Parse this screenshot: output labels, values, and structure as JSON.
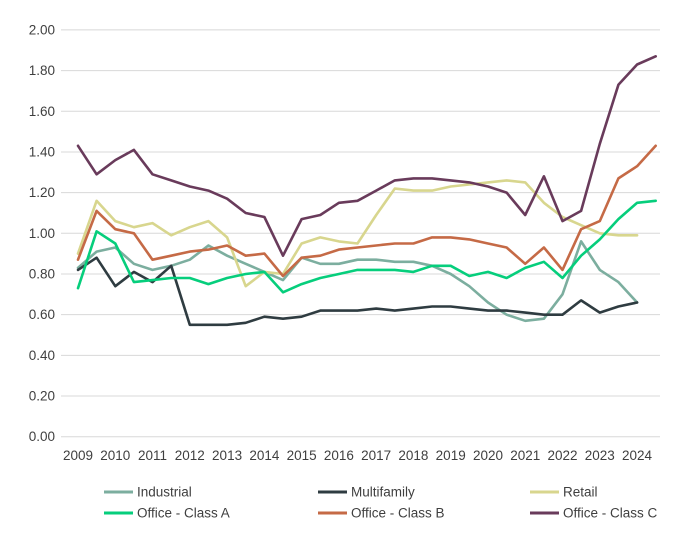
{
  "chart_data": {
    "type": "line",
    "title": "",
    "xlabel": "",
    "ylabel": "",
    "x_start": 2009,
    "x_step": 0.5,
    "x_tick_labels": [
      "2009",
      "2010",
      "2011",
      "2012",
      "2013",
      "2014",
      "2015",
      "2016",
      "2017",
      "2018",
      "2019",
      "2020",
      "2021",
      "2022",
      "2023",
      "2024"
    ],
    "y_tick_labels": [
      "2.00",
      "1.80",
      "1.60",
      "1.40",
      "1.20",
      "1.00",
      "0.80",
      "0.60",
      "0.40",
      "0.20",
      "0.00"
    ],
    "y_range": [
      0.0,
      2.0
    ],
    "grid": true,
    "legend_position": "bottom",
    "series": [
      {
        "name": "Industrial",
        "color": "#7CAE9F",
        "values": [
          0.83,
          0.91,
          0.93,
          0.85,
          0.82,
          0.84,
          0.87,
          0.94,
          0.89,
          0.85,
          0.81,
          0.77,
          0.88,
          0.85,
          0.85,
          0.87,
          0.87,
          0.86,
          0.86,
          0.84,
          0.8,
          0.74,
          0.66,
          0.6,
          0.57,
          0.58,
          0.7,
          0.96,
          0.82,
          0.76,
          0.66
        ]
      },
      {
        "name": "Multifamily",
        "color": "#2F3C41",
        "values": [
          0.82,
          0.88,
          0.74,
          0.81,
          0.76,
          0.84,
          0.55,
          0.55,
          0.55,
          0.56,
          0.59,
          0.58,
          0.59,
          0.62,
          0.62,
          0.62,
          0.63,
          0.62,
          0.63,
          0.64,
          0.64,
          0.63,
          0.62,
          0.62,
          0.61,
          0.6,
          0.6,
          0.67,
          0.61,
          0.64,
          0.66
        ]
      },
      {
        "name": "Retail",
        "color": "#D8D68E",
        "values": [
          0.9,
          1.16,
          1.06,
          1.03,
          1.05,
          0.99,
          1.03,
          1.06,
          0.98,
          0.74,
          0.81,
          0.8,
          0.95,
          0.98,
          0.96,
          0.95,
          1.09,
          1.22,
          1.21,
          1.21,
          1.23,
          1.24,
          1.25,
          1.26,
          1.25,
          1.15,
          1.08,
          1.04,
          1.0,
          0.99,
          0.99
        ]
      },
      {
        "name": "Office - Class A",
        "color": "#06CE7C",
        "values": [
          0.73,
          1.01,
          0.95,
          0.76,
          0.77,
          0.78,
          0.78,
          0.75,
          0.78,
          0.8,
          0.81,
          0.71,
          0.75,
          0.78,
          0.8,
          0.82,
          0.82,
          0.82,
          0.81,
          0.84,
          0.84,
          0.79,
          0.81,
          0.78,
          0.83,
          0.86,
          0.78,
          0.89,
          0.97,
          1.07,
          1.15,
          1.16
        ]
      },
      {
        "name": "Office - Class B",
        "color": "#C56A46",
        "values": [
          0.87,
          1.11,
          1.02,
          1.0,
          0.87,
          0.89,
          0.91,
          0.92,
          0.94,
          0.89,
          0.9,
          0.79,
          0.88,
          0.89,
          0.92,
          0.93,
          0.94,
          0.95,
          0.95,
          0.98,
          0.98,
          0.97,
          0.95,
          0.93,
          0.85,
          0.93,
          0.82,
          1.02,
          1.06,
          1.27,
          1.33,
          1.43
        ]
      },
      {
        "name": "Office - Class C",
        "color": "#693B5B",
        "values": [
          1.43,
          1.29,
          1.36,
          1.41,
          1.29,
          1.26,
          1.23,
          1.21,
          1.17,
          1.1,
          1.08,
          0.89,
          1.07,
          1.09,
          1.15,
          1.16,
          1.21,
          1.26,
          1.27,
          1.27,
          1.26,
          1.25,
          1.23,
          1.2,
          1.09,
          1.28,
          1.06,
          1.11,
          1.44,
          1.73,
          1.83,
          1.87
        ]
      }
    ],
    "legend_rows": [
      [
        "Industrial",
        "Multifamily",
        "Retail"
      ],
      [
        "Office - Class A",
        "Office - Class B",
        "Office - Class C"
      ]
    ]
  },
  "colors": {
    "axis_text": "#3F3F3F",
    "gridline": "#D8D8D8",
    "background": "#FFFFFF"
  }
}
